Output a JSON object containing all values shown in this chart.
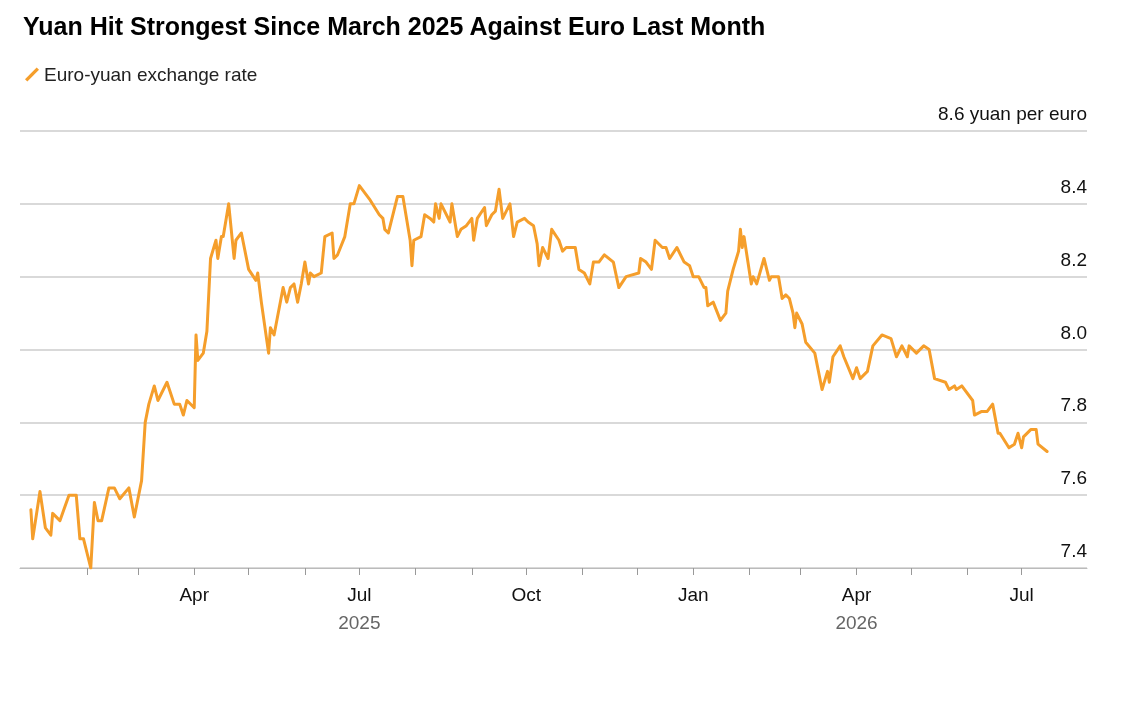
{
  "chart_data": {
    "type": "line",
    "title": "Yuan Hit Strongest Since March 2025 Against Euro Last Month",
    "legend": "top left",
    "grid": "y",
    "marker": "none",
    "line_style": "solid",
    "xlim": [
      "2024-12-26",
      "2026-08-06"
    ],
    "xticks": [
      {
        "value": "2025-02-01",
        "label": null
      },
      {
        "value": "2025-03-01",
        "label": null
      },
      {
        "value": "2025-04-01",
        "label": "Apr"
      },
      {
        "value": "2025-05-01",
        "label": null
      },
      {
        "value": "2025-06-01",
        "label": null
      },
      {
        "value": "2025-07-01",
        "label": "Jul\n2025"
      },
      {
        "value": "2025-08-01",
        "label": null
      },
      {
        "value": "2025-09-01",
        "label": null
      },
      {
        "value": "2025-10-01",
        "label": "Oct"
      },
      {
        "value": "2025-11-01",
        "label": null
      },
      {
        "value": "2025-12-01",
        "label": null
      },
      {
        "value": "2026-01-01",
        "label": "Jan"
      },
      {
        "value": "2026-02-01",
        "label": null
      },
      {
        "value": "2026-03-01",
        "label": null
      },
      {
        "value": "2026-04-01",
        "label": "Apr\n2026"
      },
      {
        "value": "2026-05-01",
        "label": null
      },
      {
        "value": "2026-06-01",
        "label": null
      },
      {
        "value": "2026-07-01",
        "label": "Jul"
      }
    ],
    "ylim": [
      7.4,
      8.6
    ],
    "yticks": [
      7.4,
      7.6,
      7.8,
      {
        "value": 8.0,
        "label": "8.0"
      },
      8.2,
      8.4,
      {
        "value": 8.6,
        "label": "8.6 yuan per euro"
      }
    ],
    "x": [
      "2025-01-01",
      "2025-01-02",
      "2025-01-06",
      "2025-01-09",
      "2025-01-12",
      "2025-01-13",
      "2025-01-17",
      "2025-01-22",
      "2025-01-26",
      "2025-01-28",
      "2025-01-30",
      "2025-02-03",
      "2025-02-05",
      "2025-02-07",
      "2025-02-09",
      "2025-02-13",
      "2025-02-16",
      "2025-02-19",
      "2025-02-24",
      "2025-02-27",
      "2025-03-03",
      "2025-03-05",
      "2025-03-07",
      "2025-03-10",
      "2025-03-12",
      "2025-03-17",
      "2025-03-21",
      "2025-03-24",
      "2025-03-26",
      "2025-03-28",
      "2025-04-01",
      "2025-04-02",
      "2025-04-03",
      "2025-04-06",
      "2025-04-08",
      "2025-04-10",
      "2025-04-13",
      "2025-04-14",
      "2025-04-16",
      "2025-04-17",
      "2025-04-20",
      "2025-04-23",
      "2025-04-24",
      "2025-04-27",
      "2025-05-01",
      "2025-05-05",
      "2025-05-06",
      "2025-05-08",
      "2025-05-12",
      "2025-05-13",
      "2025-05-15",
      "2025-05-20",
      "2025-05-22",
      "2025-05-24",
      "2025-05-26",
      "2025-05-28",
      "2025-05-30",
      "2025-06-01",
      "2025-06-03",
      "2025-06-04",
      "2025-06-06",
      "2025-06-10",
      "2025-06-12",
      "2025-06-16",
      "2025-06-17",
      "2025-06-19",
      "2025-06-23",
      "2025-06-26",
      "2025-06-28",
      "2025-07-01",
      "2025-07-04",
      "2025-07-07",
      "2025-07-12",
      "2025-07-14",
      "2025-07-15",
      "2025-07-17",
      "2025-07-20",
      "2025-07-22",
      "2025-07-25",
      "2025-07-29",
      "2025-07-30",
      "2025-07-31",
      "2025-08-04",
      "2025-08-06",
      "2025-08-09",
      "2025-08-11",
      "2025-08-12",
      "2025-08-14",
      "2025-08-15",
      "2025-08-20",
      "2025-08-21",
      "2025-08-24",
      "2025-08-26",
      "2025-08-29",
      "2025-09-01",
      "2025-09-02",
      "2025-09-04",
      "2025-09-08",
      "2025-09-09",
      "2025-09-12",
      "2025-09-14",
      "2025-09-16",
      "2025-09-18",
      "2025-09-22",
      "2025-09-24",
      "2025-09-26",
      "2025-09-30",
      "2025-10-02",
      "2025-10-05",
      "2025-10-07",
      "2025-10-08",
      "2025-10-10",
      "2025-10-13",
      "2025-10-15",
      "2025-10-19",
      "2025-10-21",
      "2025-10-23",
      "2025-10-28",
      "2025-10-30",
      "2025-11-02",
      "2025-11-05",
      "2025-11-07",
      "2025-11-10",
      "2025-11-13",
      "2025-11-18",
      "2025-11-21",
      "2025-11-25",
      "2025-12-02",
      "2025-12-03",
      "2025-12-06",
      "2025-12-09",
      "2025-12-11",
      "2025-12-15",
      "2025-12-17",
      "2025-12-19",
      "2025-12-23",
      "2025-12-27",
      "2025-12-30",
      "2026-01-01",
      "2026-01-04",
      "2026-01-07",
      "2026-01-08",
      "2026-01-09",
      "2026-01-12",
      "2026-01-16",
      "2026-01-19",
      "2026-01-20",
      "2026-01-23",
      "2026-01-26",
      "2026-01-27",
      "2026-01-28",
      "2026-01-29",
      "2026-02-02",
      "2026-02-03",
      "2026-02-05",
      "2026-02-09",
      "2026-02-12",
      "2026-02-13",
      "2026-02-17",
      "2026-02-19",
      "2026-02-21",
      "2026-02-23",
      "2026-02-25",
      "2026-02-26",
      "2026-02-27",
      "2026-03-02",
      "2026-03-04",
      "2026-03-09",
      "2026-03-13",
      "2026-03-16",
      "2026-03-17",
      "2026-03-19",
      "2026-03-23",
      "2026-03-25",
      "2026-03-30",
      "2026-04-01",
      "2026-04-03",
      "2026-04-07",
      "2026-04-10",
      "2026-04-15",
      "2026-04-20",
      "2026-04-23",
      "2026-04-26",
      "2026-04-29",
      "2026-04-30",
      "2026-05-04",
      "2026-05-08",
      "2026-05-11",
      "2026-05-14",
      "2026-05-20",
      "2026-05-22",
      "2026-05-25",
      "2026-05-26",
      "2026-05-29",
      "2026-06-04",
      "2026-06-05",
      "2026-06-09",
      "2026-06-12",
      "2026-06-15",
      "2026-06-18",
      "2026-06-19",
      "2026-06-24",
      "2026-06-27",
      "2026-06-29",
      "2026-07-01",
      "2026-07-02",
      "2026-07-06",
      "2026-07-09",
      "2026-07-10",
      "2026-07-15"
    ],
    "series": [
      {
        "name": "Euro-yuan exchange rate",
        "color": "#f59e2b",
        "values": [
          7.56,
          7.48,
          7.61,
          7.51,
          7.49,
          7.55,
          7.53,
          7.6,
          7.6,
          7.48,
          7.48,
          7.4,
          7.58,
          7.53,
          7.53,
          7.62,
          7.62,
          7.59,
          7.62,
          7.54,
          7.64,
          7.8,
          7.85,
          7.9,
          7.86,
          7.91,
          7.85,
          7.85,
          7.82,
          7.86,
          7.84,
          8.04,
          7.97,
          7.99,
          8.05,
          8.25,
          8.3,
          8.25,
          8.31,
          8.31,
          8.4,
          8.25,
          8.3,
          8.32,
          8.22,
          8.19,
          8.21,
          8.13,
          7.99,
          8.06,
          8.04,
          8.17,
          8.13,
          8.17,
          8.18,
          8.13,
          8.18,
          8.24,
          8.18,
          8.21,
          8.2,
          8.21,
          8.31,
          8.32,
          8.25,
          8.26,
          8.31,
          8.4,
          8.4,
          8.45,
          8.43,
          8.41,
          8.37,
          8.36,
          8.33,
          8.32,
          8.38,
          8.42,
          8.42,
          8.3,
          8.23,
          8.3,
          8.31,
          8.37,
          8.36,
          8.35,
          8.4,
          8.36,
          8.4,
          8.35,
          8.4,
          8.31,
          8.33,
          8.34,
          8.36,
          8.3,
          8.36,
          8.39,
          8.34,
          8.37,
          8.38,
          8.44,
          8.36,
          8.4,
          8.31,
          8.35,
          8.36,
          8.35,
          8.34,
          8.29,
          8.23,
          8.28,
          8.25,
          8.33,
          8.3,
          8.27,
          8.28,
          8.28,
          8.22,
          8.21,
          8.18,
          8.24,
          8.24,
          8.26,
          8.24,
          8.17,
          8.2,
          8.21,
          8.25,
          8.24,
          8.22,
          8.3,
          8.28,
          8.28,
          8.25,
          8.28,
          8.24,
          8.23,
          8.2,
          8.2,
          8.17,
          8.17,
          8.12,
          8.13,
          8.08,
          8.1,
          8.16,
          8.22,
          8.27,
          8.33,
          8.28,
          8.31,
          8.18,
          8.2,
          8.18,
          8.25,
          8.19,
          8.2,
          8.2,
          8.14,
          8.15,
          8.14,
          8.1,
          8.06,
          8.1,
          8.07,
          8.02,
          7.99,
          7.89,
          7.94,
          7.91,
          7.98,
          8.01,
          7.98,
          7.92,
          7.95,
          7.92,
          7.94,
          8.01,
          8.04,
          8.03,
          7.98,
          8.01,
          7.98,
          8.01,
          7.99,
          8.01,
          8.0,
          7.92,
          7.91,
          7.89,
          7.9,
          7.89,
          7.9,
          7.86,
          7.82,
          7.83,
          7.83,
          7.85,
          7.77,
          7.77,
          7.73,
          7.74,
          7.77,
          7.73,
          7.76,
          7.78,
          7.78,
          7.74,
          7.72
        ]
      }
    ]
  }
}
